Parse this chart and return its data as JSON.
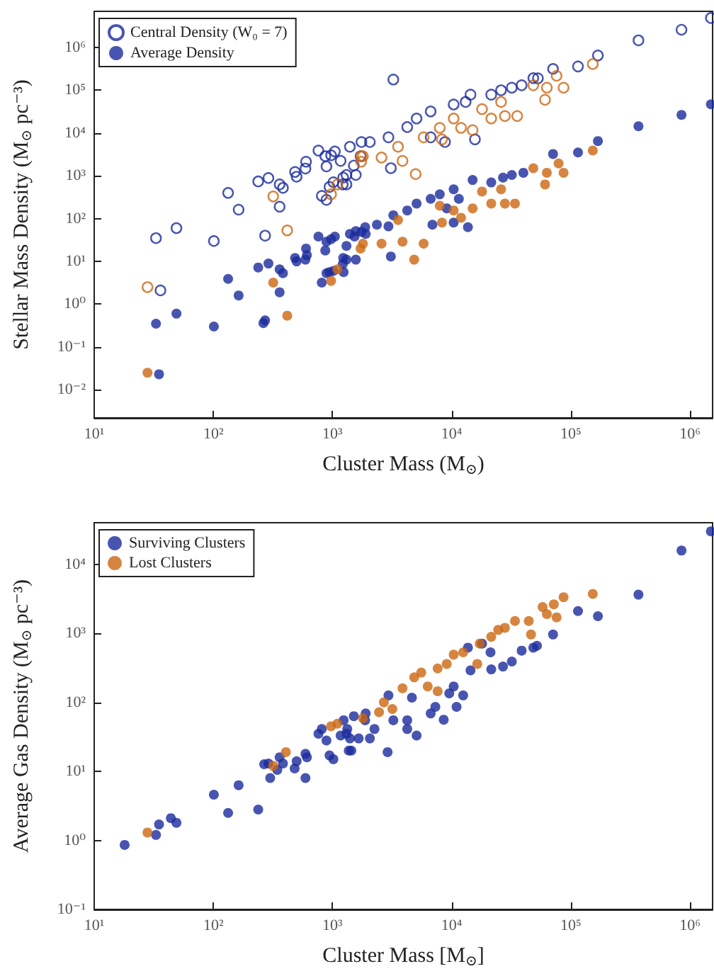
{
  "chart_data": [
    {
      "type": "scatter",
      "xlabel": "Cluster Mass (M$_{⊙}$)",
      "ylabel": "Stellar Mass Density (M$_{⊙}$ pc⁻³)",
      "log": "xy",
      "legend": "top left",
      "xlim": [
        10,
        1550000
      ],
      "ylim": [
        0.0022,
        7000000
      ],
      "xticks": [
        {
          "value": 10,
          "label": "10¹"
        },
        {
          "value": 100,
          "label": "10²"
        },
        {
          "value": 1000,
          "label": "10³"
        },
        {
          "value": 10000,
          "label": "10⁴"
        },
        {
          "value": 100000,
          "label": "10⁵"
        },
        {
          "value": 1000000,
          "label": "10⁶"
        }
      ],
      "yticks": [
        {
          "value": 0.01,
          "label": "10⁻²"
        },
        {
          "value": 0.1,
          "label": "10⁻¹"
        },
        {
          "value": 1,
          "label": "10⁰"
        },
        {
          "value": 10,
          "label": "10¹"
        },
        {
          "value": 100,
          "label": "10²"
        },
        {
          "value": 1000,
          "label": "10³"
        },
        {
          "value": 10000,
          "label": "10⁴"
        },
        {
          "value": 100000,
          "label": "10⁵"
        },
        {
          "value": 1000000,
          "label": "10⁶"
        }
      ],
      "series": [
        {
          "name": "Central Density (W₀ = 7)",
          "color": "#1a2a9c",
          "marker": "circle-open",
          "x": [
            36,
            33,
            49,
            101,
            133,
            163,
            238,
            290,
            360,
            384,
            360,
            272,
            485,
            500,
            593,
            600,
            762,
            890,
            870,
            973,
            1047,
            813,
            890,
            944,
            1018,
            1220,
            1230,
            1400,
            1750,
            1510,
            1170,
            1310,
            1570,
            1310,
            1720,
            2060,
            2950,
            3090,
            3240,
            4240,
            5080,
            6670,
            6670,
            8800,
            10400,
            13100,
            14400,
            15700,
            21500,
            26000,
            32000,
            38700,
            48500,
            53000,
            71000,
            115000,
            169000,
            370000,
            850000,
            1500000
          ],
          "values": [
            2.1,
            35,
            60,
            30,
            400,
            162,
            740,
            890,
            630,
            525,
            190,
            40,
            1230,
            955,
            1480,
            2140,
            3890,
            1660,
            2880,
            3020,
            3720,
            340,
            275,
            550,
            710,
            630,
            910,
            4790,
            6170,
            1740,
            2240,
            1050,
            1050,
            630,
            2880,
            6170,
            7950,
            1510,
            178000,
            13800,
            21900,
            32000,
            7950,
            6170,
            46500,
            53400,
            79000,
            7100,
            79000,
            100000,
            115000,
            131000,
            192000,
            190000,
            316000,
            360000,
            650000,
            1470000,
            2600000,
            4900000
          ]
        },
        {
          "color": "#cc6611",
          "marker": "circle-open",
          "x": [
            28,
            318,
            417,
            973,
            1100,
            1740,
            1740,
            1800,
            2580,
            3550,
            3870,
            4990,
            5820,
            7950,
            8300,
            10400,
            12000,
            15000,
            18000,
            21500,
            26000,
            28000,
            35500,
            48500,
            60800,
            63000,
            76000,
            87000,
            153000
          ],
          "values": [
            2.5,
            330,
            53,
            370,
            630,
            2880,
            2140,
            2880,
            2680,
            4790,
            2240,
            1100,
            7950,
            13200,
            7100,
            21900,
            13200,
            11700,
            36300,
            21900,
            53400,
            25000,
            25000,
            131000,
            60000,
            115000,
            218000,
            115000,
            410000
          ]
        },
        {
          "name": "Average Density",
          "color": "#1a2a9c",
          "marker": "circle",
          "x": [
            35,
            33,
            49,
            101,
            133,
            163,
            238,
            290,
            360,
            384,
            360,
            272,
            263,
            485,
            500,
            593,
            600,
            610,
            762,
            870,
            890,
            973,
            1047,
            813,
            890,
            944,
            1018,
            1220,
            1230,
            1240,
            1400,
            1530,
            1750,
            1900,
            1310,
            1310,
            1570,
            3090,
            1570,
            1880,
            2360,
            2950,
            3240,
            4240,
            5080,
            6670,
            7950,
            10400,
            11500,
            15000,
            21500,
            27000,
            32000,
            40000,
            71000,
            115000,
            169000,
            370000,
            850000,
            1500000,
            6900,
            13700,
            10400,
            9100
          ],
          "values": [
            0.023,
            0.35,
            0.6,
            0.3,
            3.9,
            1.6,
            7.2,
            8.9,
            6.5,
            5.3,
            1.9,
            0.42,
            0.36,
            12,
            10,
            11,
            20,
            14,
            38,
            18,
            29,
            33,
            38,
            3.2,
            5.3,
            5.6,
            6,
            8.7,
            12,
            5.6,
            44,
            38,
            49,
            44,
            23,
            11,
            11,
            13,
            51,
            63,
            72,
            66,
            120,
            155,
            225,
            290,
            370,
            485,
            290,
            800,
            700,
            910,
            1050,
            1180,
            3240,
            3520,
            6500,
            14400,
            26500,
            47000,
            72,
            63,
            81,
            174
          ]
        },
        {
          "color": "#cc6611",
          "marker": "circle",
          "x": [
            28,
            318,
            417,
            973,
            1100,
            1720,
            1800,
            2580,
            3550,
            3870,
            4850,
            5820,
            7950,
            8300,
            10400,
            12000,
            15000,
            18000,
            21500,
            26000,
            28000,
            34000,
            48500,
            60800,
            63000,
            79000,
            87000,
            153000
          ],
          "values": [
            0.025,
            3.2,
            0.54,
            3.5,
            6.5,
            20,
            26,
            26,
            93,
            29,
            11,
            26,
            200,
            81,
            155,
            105,
            174,
            430,
            225,
            485,
            225,
            225,
            1510,
            630,
            1180,
            1950,
            1180,
            3900
          ]
        }
      ]
    },
    {
      "type": "scatter",
      "xlabel": "Cluster Mass [M$_{⊙}$]",
      "ylabel": "Average Gas Density (M$_{⊙}$ pc⁻³)",
      "log": "xy",
      "legend": "top left",
      "xlim": [
        10,
        1550000
      ],
      "ylim": [
        0.1,
        40000
      ],
      "xticks": [
        {
          "value": 10,
          "label": "10¹"
        },
        {
          "value": 100,
          "label": "10²"
        },
        {
          "value": 1000,
          "label": "10³"
        },
        {
          "value": 10000,
          "label": "10⁴"
        },
        {
          "value": 100000,
          "label": "10⁵"
        },
        {
          "value": 1000000,
          "label": "10⁶"
        }
      ],
      "yticks": [
        {
          "value": 0.1,
          "label": "10⁻¹"
        },
        {
          "value": 1,
          "label": "10⁰"
        },
        {
          "value": 10,
          "label": "10¹"
        },
        {
          "value": 100,
          "label": "10²"
        },
        {
          "value": 1000,
          "label": "10³"
        },
        {
          "value": 10000,
          "label": "10⁴"
        }
      ],
      "series": [
        {
          "name": "Surviving Clusters",
          "color": "#1a2a9c",
          "marker": "circle",
          "x": [
            18,
            33,
            35,
            44,
            49,
            101,
            133,
            163,
            238,
            267,
            290,
            300,
            360,
            384,
            344,
            481,
            500,
            593,
            610,
            593,
            762,
            813,
            890,
            944,
            1018,
            1170,
            1240,
            1330,
            1370,
            1400,
            1510,
            1660,
            1900,
            1310,
            1440,
            1880,
            2060,
            2900,
            2250,
            2950,
            3240,
            4240,
            4240,
            5080,
            4640,
            6670,
            7300,
            8580,
            9550,
            10400,
            11000,
            12500,
            13700,
            14400,
            18000,
            21500,
            21200,
            27000,
            32000,
            38700,
            48500,
            52000,
            71000,
            115000,
            169000,
            370000,
            850000,
            1500000
          ],
          "values": [
            0.86,
            1.2,
            1.7,
            2.1,
            1.8,
            4.6,
            2.5,
            6.3,
            2.8,
            12.7,
            13,
            8,
            16,
            13,
            10.5,
            11,
            14,
            18,
            16,
            8,
            35,
            41,
            28,
            17,
            15,
            33,
            55,
            41,
            20,
            30,
            63,
            30,
            69,
            35,
            20,
            55,
            30,
            19,
            41,
            126,
            55,
            55,
            41,
            33,
            117,
            69,
            86,
            56,
            135,
            170,
            86,
            126,
            620,
            290,
            710,
            300,
            530,
            330,
            390,
            560,
            620,
            660,
            960,
            2100,
            1770,
            3630,
            15800,
            30000
          ]
        },
        {
          "name": "Lost Clusters",
          "color": "#cc6611",
          "marker": "circle",
          "x": [
            28,
            318,
            406,
            973,
            1100,
            1800,
            2460,
            3180,
            2700,
            3870,
            4850,
            5560,
            6300,
            7630,
            7630,
            9100,
            10400,
            12500,
            16400,
            17200,
            21500,
            24600,
            28000,
            34000,
            44400,
            46400,
            58000,
            63000,
            76000,
            72000,
            87000,
            153000
          ],
          "values": [
            1.3,
            12,
            19,
            45,
            49,
            59,
            72,
            80,
            100,
            160,
            230,
            270,
            170,
            145,
            310,
            360,
            490,
            530,
            360,
            710,
            890,
            1120,
            1200,
            1510,
            1510,
            960,
            2400,
            1900,
            1700,
            2630,
            3330,
            3720
          ]
        }
      ]
    }
  ]
}
